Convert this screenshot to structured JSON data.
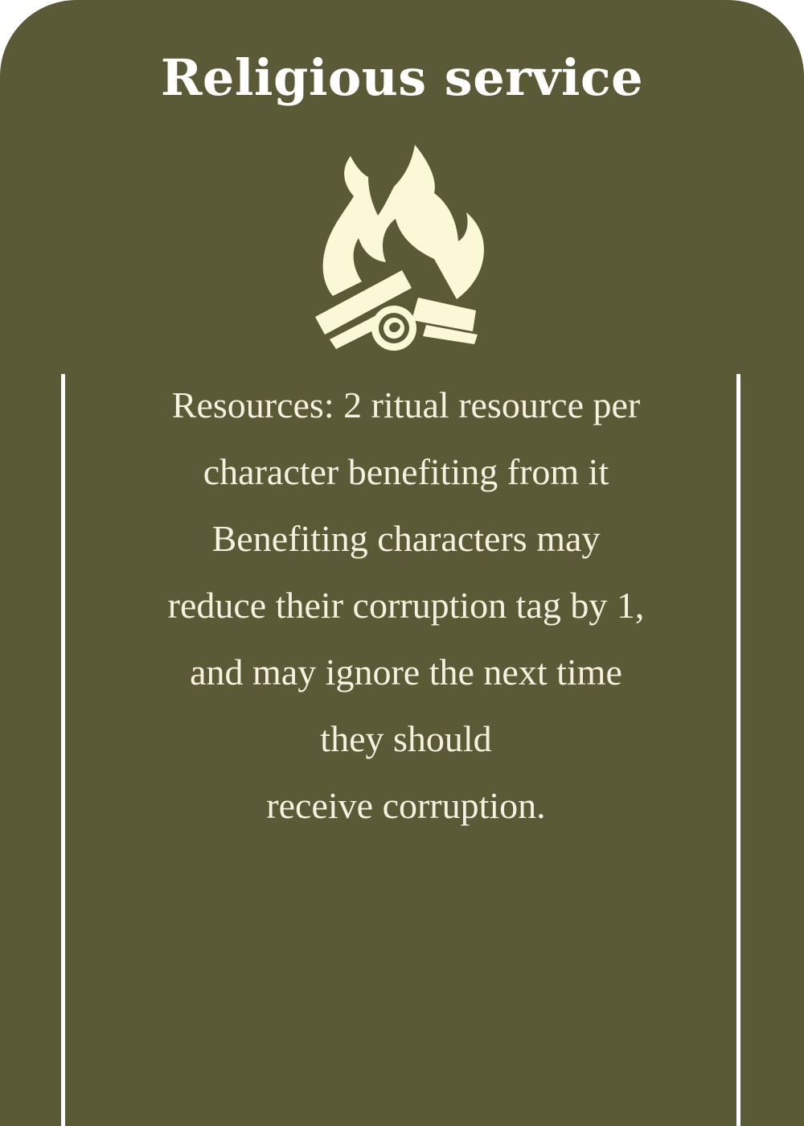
{
  "card": {
    "title": "Religious service",
    "icon": "campfire-icon",
    "lines": [
      "Resources: 2 ritual resource per",
      "character benefiting from it",
      "Benefiting characters may",
      "reduce their corruption tag by 1,",
      "and may ignore the next time",
      "they should",
      "receive corruption."
    ]
  },
  "colors": {
    "background": "#5a5a36",
    "title": "#ffffff",
    "text": "#f5f0e0",
    "icon": "#fbf8d8",
    "rules": "#ffffff"
  }
}
